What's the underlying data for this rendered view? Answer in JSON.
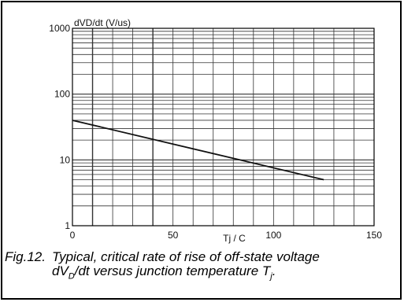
{
  "chart_data": {
    "type": "line",
    "xlabel": "Tj / C",
    "ylabel": "dVD/dt (V/us)",
    "xlim": [
      0,
      150
    ],
    "ylim": [
      1,
      1000
    ],
    "yscale": "log",
    "grid": true,
    "x_ticks": [
      0,
      50,
      100,
      150
    ],
    "y_ticks": [
      1,
      10,
      100,
      1000
    ],
    "x_tick_labels": [
      "0",
      "50",
      "100",
      "150"
    ],
    "y_tick_labels": [
      "1",
      "10",
      "100",
      "1000"
    ],
    "series": [
      {
        "x": [
          0,
          125
        ],
        "y": [
          40,
          5
        ]
      }
    ],
    "colors": {
      "line": "#111111",
      "grid": "#333333",
      "frame": "#000000"
    }
  },
  "caption": {
    "fig_number": "Fig.12.",
    "line1": "Typical, critical rate of rise of off-state voltage",
    "line2_prefix": "dV",
    "line2_sub": "D",
    "line2_middle": "/dt versus junction temperature T",
    "line2_sub2": "j",
    "line2_end": "."
  }
}
